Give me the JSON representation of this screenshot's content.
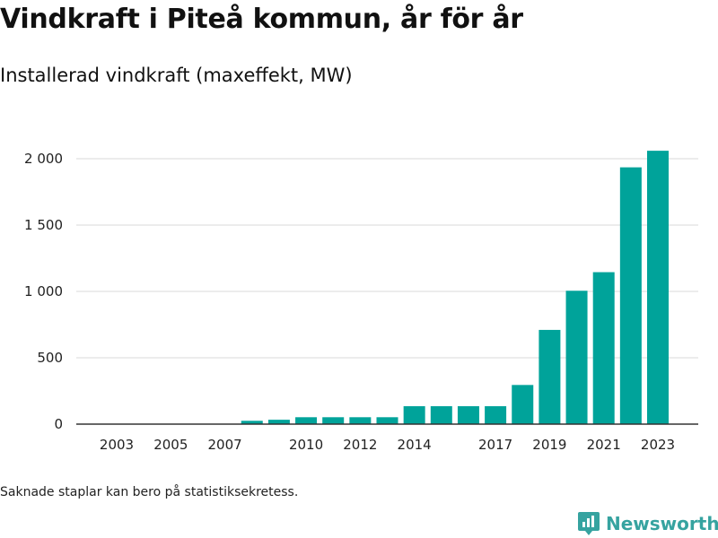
{
  "title": "Vindkraft i Piteå kommun, år för år",
  "subtitle": "Installerad vindkraft (maxeffekt, MW)",
  "footnote": "Saknade staplar kan bero på statistiksekretess.",
  "brand": {
    "name": "Newsworthy",
    "icon": "newsworthy-logo-icon",
    "color": "#36a3a0"
  },
  "colors": {
    "bar": "#00a39a",
    "grid": "#d9d9d9",
    "axis": "#333333"
  },
  "chart_data": {
    "type": "bar",
    "title": "Vindkraft i Piteå kommun, år för år",
    "subtitle": "Installerad vindkraft (maxeffekt, MW)",
    "xlabel": "",
    "ylabel": "",
    "categories": [
      2003,
      2004,
      2005,
      2006,
      2007,
      2008,
      2009,
      2010,
      2011,
      2012,
      2013,
      2014,
      2015,
      2016,
      2017,
      2018,
      2019,
      2020,
      2021,
      2022,
      2023
    ],
    "values": [
      null,
      null,
      null,
      null,
      null,
      25,
      33,
      52,
      52,
      52,
      52,
      135,
      135,
      135,
      135,
      295,
      710,
      1005,
      1145,
      1935,
      2060
    ],
    "x_tick_labels": [
      "2003",
      "2005",
      "2007",
      "2010",
      "2012",
      "2014",
      "2017",
      "2019",
      "2021",
      "2023"
    ],
    "x_tick_values": [
      2003,
      2005,
      2007,
      2010,
      2012,
      2014,
      2017,
      2019,
      2021,
      2023
    ],
    "y_ticks": [
      0,
      500,
      1000,
      1500,
      2000
    ],
    "y_tick_labels": [
      "0",
      "500",
      "1 000",
      "1 500",
      "2 000"
    ],
    "ylim": [
      0,
      2150
    ],
    "grid": true,
    "legend": "none"
  }
}
